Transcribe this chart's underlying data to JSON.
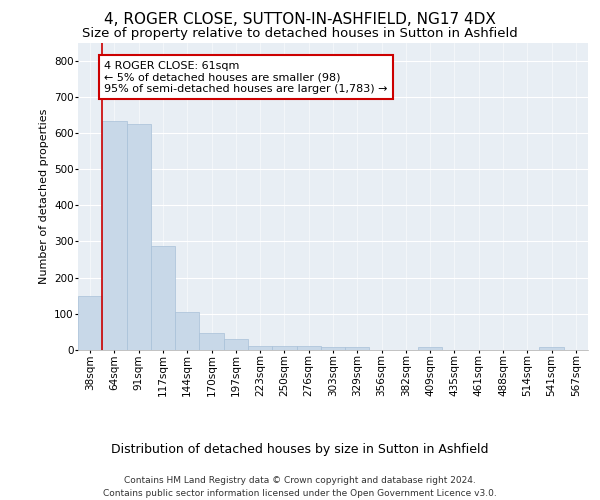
{
  "title": "4, ROGER CLOSE, SUTTON-IN-ASHFIELD, NG17 4DX",
  "subtitle": "Size of property relative to detached houses in Sutton in Ashfield",
  "xlabel": "Distribution of detached houses by size in Sutton in Ashfield",
  "ylabel": "Number of detached properties",
  "categories": [
    "38sqm",
    "64sqm",
    "91sqm",
    "117sqm",
    "144sqm",
    "170sqm",
    "197sqm",
    "223sqm",
    "250sqm",
    "276sqm",
    "303sqm",
    "329sqm",
    "356sqm",
    "382sqm",
    "409sqm",
    "435sqm",
    "461sqm",
    "488sqm",
    "514sqm",
    "541sqm",
    "567sqm"
  ],
  "values": [
    150,
    632,
    625,
    288,
    104,
    48,
    30,
    12,
    12,
    12,
    8,
    8,
    0,
    0,
    8,
    0,
    0,
    0,
    0,
    8,
    0
  ],
  "bar_color": "#c8d8e8",
  "bar_edge_color": "#a8c0d8",
  "vline_color": "#cc0000",
  "vline_x_index": 0.5,
  "annotation_text": "4 ROGER CLOSE: 61sqm\n← 5% of detached houses are smaller (98)\n95% of semi-detached houses are larger (1,783) →",
  "annotation_box_color": "#ffffff",
  "annotation_box_edge": "#cc0000",
  "ylim": [
    0,
    850
  ],
  "yticks": [
    0,
    100,
    200,
    300,
    400,
    500,
    600,
    700,
    800
  ],
  "footnote1": "Contains HM Land Registry data © Crown copyright and database right 2024.",
  "footnote2": "Contains public sector information licensed under the Open Government Licence v3.0.",
  "background_color": "#e8eef4",
  "title_fontsize": 11,
  "subtitle_fontsize": 9.5,
  "ylabel_fontsize": 8,
  "xlabel_fontsize": 9,
  "tick_fontsize": 7.5,
  "annotation_fontsize": 8,
  "footnote_fontsize": 6.5
}
